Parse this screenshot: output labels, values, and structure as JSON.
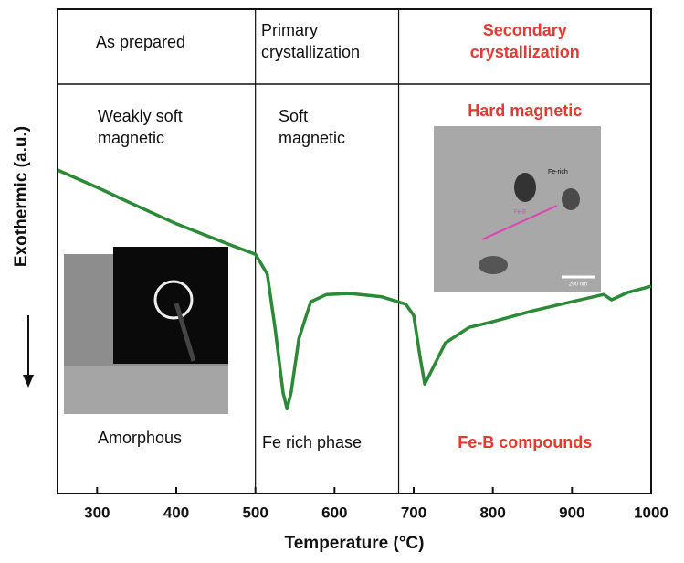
{
  "chart_data": {
    "type": "line",
    "x_label": "Temperature (°C)",
    "y_label": "Exothermic (a.u.)",
    "xlim": [
      250,
      1000
    ],
    "xticks": [
      300,
      400,
      500,
      600,
      700,
      800,
      900,
      1000
    ],
    "ylim": [
      0,
      100
    ],
    "dividers": [
      500,
      681
    ],
    "header": [
      [
        "As prepared"
      ],
      [
        "Primary",
        "crystallization"
      ],
      [
        "Secondary",
        "crystallization"
      ]
    ],
    "properties": [
      [
        "Weakly soft",
        "magnetic"
      ],
      [
        "Soft",
        "magnetic"
      ],
      [
        "Hard magnetic"
      ]
    ],
    "phases": [
      "Amorphous",
      "Fe rich phase",
      "Fe-B compounds"
    ],
    "inset_labels": [
      "Fe-rich",
      "Fe-B",
      "200 nm"
    ],
    "series": [
      {
        "color": "#2a8a35",
        "x": [
          250,
          300,
          350,
          400,
          450,
          480,
          500,
          515,
          525,
          535,
          540,
          545,
          555,
          570,
          590,
          620,
          660,
          690,
          700,
          708,
          714,
          720,
          740,
          770,
          800,
          850,
          900,
          940,
          950,
          970,
          1000
        ],
        "values": [
          66.8,
          63.2,
          59.4,
          55.7,
          52.5,
          50.6,
          49.4,
          45.3,
          34,
          20.8,
          17.5,
          20.8,
          32,
          39.6,
          41.1,
          41.3,
          40.6,
          39.1,
          36.8,
          28.3,
          22.6,
          24.5,
          31.1,
          34.3,
          35.5,
          37.7,
          39.6,
          41.1,
          40,
          41.5,
          42.8
        ]
      }
    ]
  }
}
